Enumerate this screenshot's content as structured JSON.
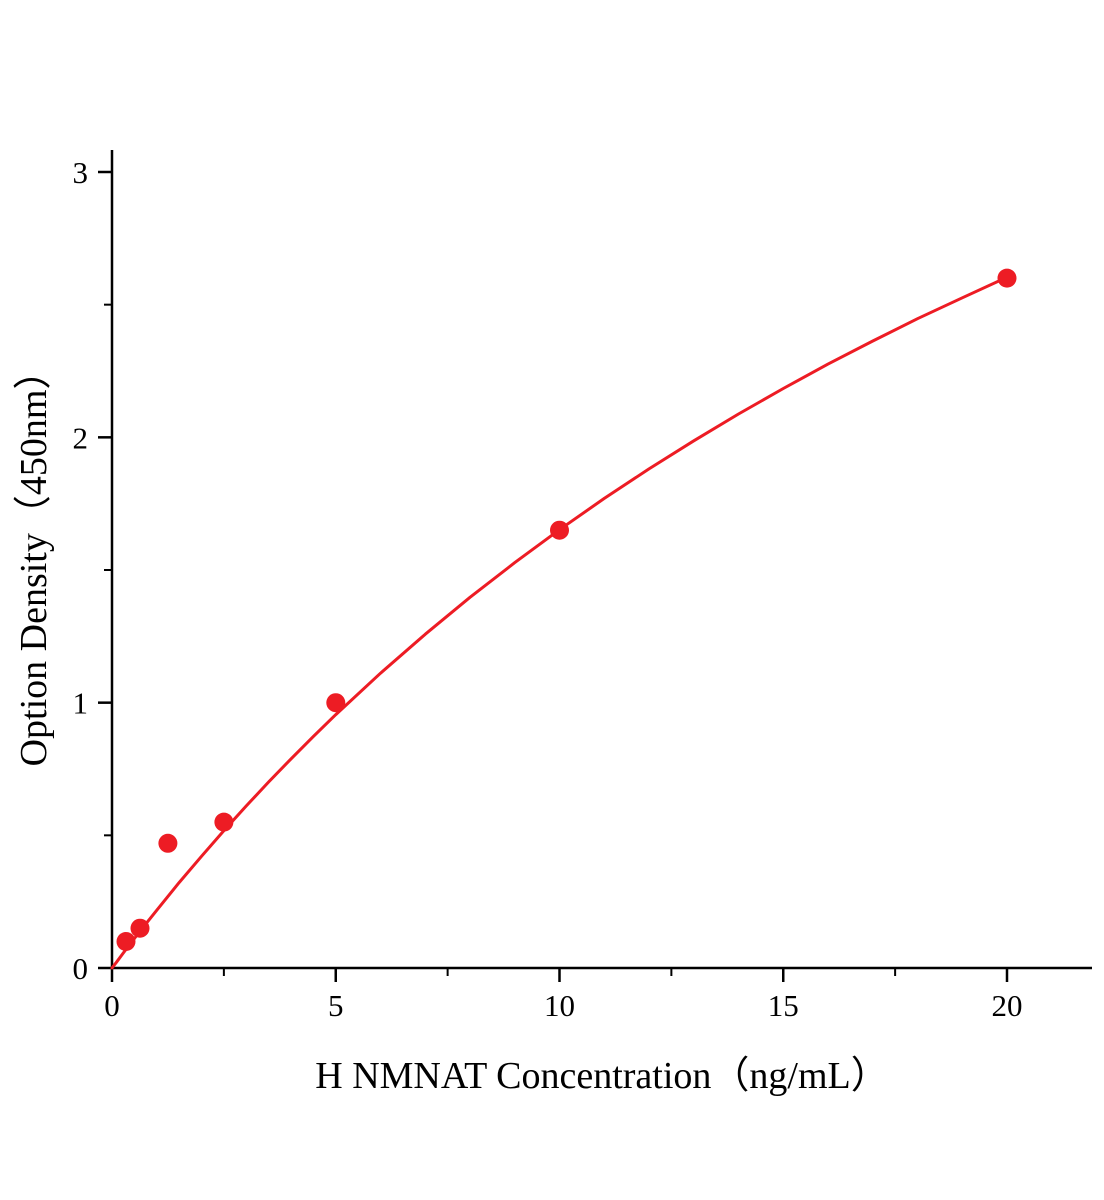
{
  "style": {
    "background": "#ffffff",
    "axis_color": "#000000",
    "accent_color": "#ed1c24"
  },
  "chart_data": {
    "type": "scatter",
    "title": "",
    "xlabel": "H NMNAT Concentration（ng/mL）",
    "ylabel": "Option Density（450nm）",
    "grid": false,
    "legend": "none",
    "x_axis": {
      "min": 0,
      "max": 21.9,
      "major_ticks": [
        0,
        5,
        10,
        15,
        20
      ],
      "minor_ticks": [
        2.5,
        7.5,
        12.5,
        17.5
      ]
    },
    "y_axis": {
      "min": 0,
      "max": 3.08,
      "major_ticks": [
        0,
        1,
        2,
        3
      ],
      "minor_ticks": [
        0.5,
        1.5,
        2.5
      ]
    },
    "series": [
      {
        "name": "H NMNAT standard curve points",
        "marker": "circle",
        "marker_radius": 9.5,
        "color": "#ed1c24",
        "points": [
          [
            0.3125,
            0.1
          ],
          [
            0.625,
            0.15
          ],
          [
            1.25,
            0.47
          ],
          [
            2.5,
            0.55
          ],
          [
            5,
            1.0
          ],
          [
            10,
            1.65
          ],
          [
            20,
            2.6
          ]
        ]
      }
    ],
    "fit_curve": {
      "name": "fitted standard curve",
      "color": "#ed1c24",
      "stroke_width": 3,
      "points": [
        [
          0,
          0
        ],
        [
          0.1,
          0.022
        ],
        [
          0.25,
          0.056
        ],
        [
          0.5,
          0.111
        ],
        [
          0.75,
          0.165
        ],
        [
          1,
          0.218
        ],
        [
          1.5,
          0.322
        ],
        [
          2,
          0.421
        ],
        [
          2.5,
          0.518
        ],
        [
          3,
          0.611
        ],
        [
          3.5,
          0.701
        ],
        [
          4,
          0.788
        ],
        [
          4.5,
          0.873
        ],
        [
          5,
          0.955
        ],
        [
          6,
          1.111
        ],
        [
          7,
          1.258
        ],
        [
          8,
          1.397
        ],
        [
          9,
          1.528
        ],
        [
          10,
          1.652
        ],
        [
          11,
          1.77
        ],
        [
          12,
          1.881
        ],
        [
          13,
          1.987
        ],
        [
          14,
          2.088
        ],
        [
          15,
          2.184
        ],
        [
          16,
          2.276
        ],
        [
          17,
          2.363
        ],
        [
          18,
          2.447
        ],
        [
          19,
          2.526
        ],
        [
          20,
          2.603
        ]
      ]
    }
  }
}
